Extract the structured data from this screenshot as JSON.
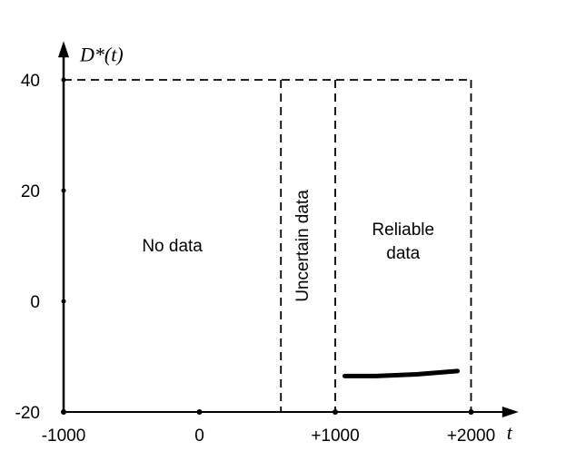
{
  "chart_data": {
    "type": "line",
    "ylabel": "D*(t)",
    "xlabel": "t",
    "x_ticks": [
      -1000,
      0,
      1000,
      2000
    ],
    "x_tick_labels": [
      "-1000",
      "0",
      "+1000",
      "+2000"
    ],
    "y_ticks": [
      -20,
      0,
      20,
      40
    ],
    "y_tick_labels": [
      "-20",
      "0",
      "20",
      "40"
    ],
    "xlim": [
      -1000,
      2350
    ],
    "ylim": [
      -20,
      47
    ],
    "grid": false,
    "reference_line": {
      "y": 40,
      "x_from": -1000,
      "x_to": 2000,
      "style": "dashed"
    },
    "region_boundaries": [
      {
        "x": 600,
        "style": "dashed"
      },
      {
        "x": 1000,
        "style": "dashed"
      },
      {
        "x": 2000,
        "style": "dashed"
      }
    ],
    "regions": [
      {
        "label": "No data",
        "x_center": -200,
        "y_center": 10,
        "rotated": false
      },
      {
        "label": "Uncertain data",
        "x_center": 800,
        "y_center": 10,
        "rotated": true
      },
      {
        "label": "Reliable",
        "label2": "data",
        "x_center": 1500,
        "y_center": 10,
        "rotated": false
      }
    ],
    "series": [
      {
        "x": [
          1070,
          1300,
          1600,
          1900
        ],
        "y": [
          -13.5,
          -13.5,
          -13.2,
          -12.6
        ]
      }
    ]
  }
}
